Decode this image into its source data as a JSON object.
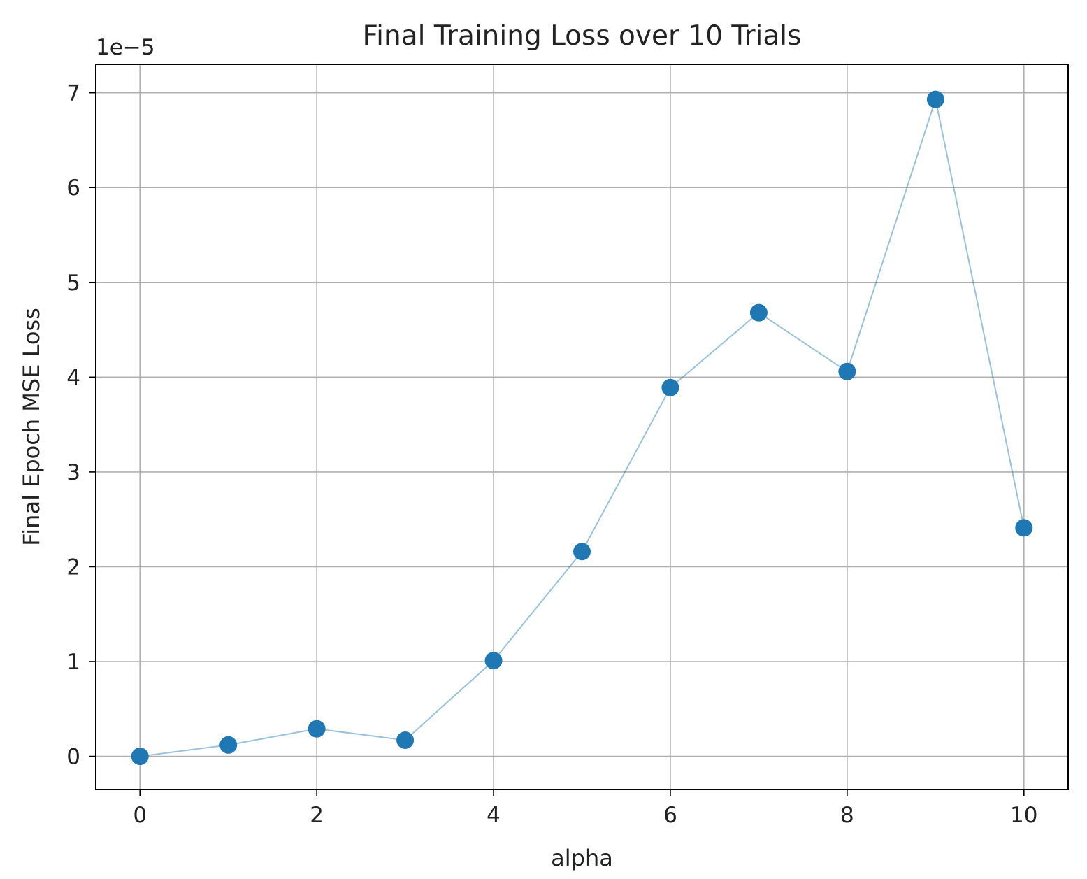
{
  "chart_data": {
    "type": "line",
    "title": "Final Training Loss over 10 Trials",
    "xlabel": "alpha",
    "ylabel": "Final Epoch MSE Loss",
    "y_offset_label": "1e−5",
    "x": [
      0,
      1,
      2,
      3,
      4,
      5,
      6,
      7,
      8,
      9,
      10
    ],
    "series": [
      {
        "values": [
          0.0,
          0.12,
          0.29,
          0.17,
          1.01,
          2.16,
          3.89,
          4.68,
          4.06,
          6.93,
          2.41
        ],
        "color": "#1f77b4",
        "marker": "circle"
      }
    ],
    "xlim": [
      -0.5,
      10.5
    ],
    "ylim": [
      -0.35,
      7.3
    ],
    "x_ticks": [
      0,
      2,
      4,
      6,
      8,
      10
    ],
    "y_ticks": [
      0,
      1,
      2,
      3,
      4,
      5,
      6,
      7
    ],
    "grid": true,
    "legend": "none"
  }
}
